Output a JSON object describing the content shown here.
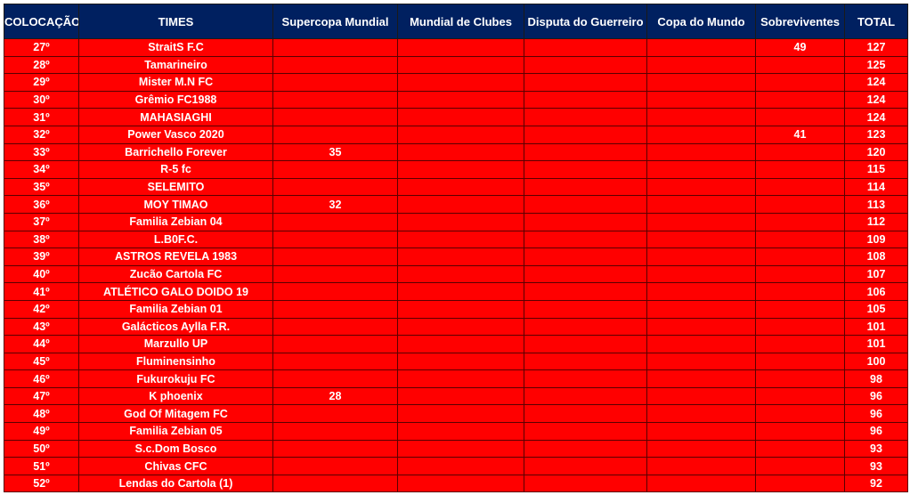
{
  "colors": {
    "header_bg": "#002060",
    "row_bg": "#ff0000",
    "text": "#ffffff"
  },
  "headers": [
    "COLOCAÇÃO",
    "TIMES",
    "Supercopa Mundial",
    "Mundial de Clubes",
    "Disputa do Guerreiro",
    "Copa do Mundo",
    "Sobreviventes",
    "TOTAL"
  ],
  "rows": [
    [
      "27º",
      "StraitS F.C",
      "",
      "",
      "",
      "",
      "49",
      "127"
    ],
    [
      "28º",
      "Tamarineiro",
      "",
      "",
      "",
      "",
      "",
      "125"
    ],
    [
      "29º",
      "Mister M.N FC",
      "",
      "",
      "",
      "",
      "",
      "124"
    ],
    [
      "30º",
      "Grêmio FC1988",
      "",
      "",
      "",
      "",
      "",
      "124"
    ],
    [
      "31º",
      "MAHASIAGHI",
      "",
      "",
      "",
      "",
      "",
      "124"
    ],
    [
      "32º",
      "Power Vasco 2020",
      "",
      "",
      "",
      "",
      "41",
      "123"
    ],
    [
      "33º",
      "Barrichello Forever",
      "35",
      "",
      "",
      "",
      "",
      "120"
    ],
    [
      "34º",
      "R-5 fc",
      "",
      "",
      "",
      "",
      "",
      "115"
    ],
    [
      "35º",
      "SELEMITO",
      "",
      "",
      "",
      "",
      "",
      "114"
    ],
    [
      "36º",
      "MOY TIMAO",
      "32",
      "",
      "",
      "",
      "",
      "113"
    ],
    [
      "37º",
      "Familia Zebian 04",
      "",
      "",
      "",
      "",
      "",
      "112"
    ],
    [
      "38º",
      "L.B0F.C.",
      "",
      "",
      "",
      "",
      "",
      "109"
    ],
    [
      "39º",
      "ASTROS REVELA 1983",
      "",
      "",
      "",
      "",
      "",
      "108"
    ],
    [
      "40º",
      "Zucão Cartola FC",
      "",
      "",
      "",
      "",
      "",
      "107"
    ],
    [
      "41º",
      "ATLÉTICO GALO DOIDO 19",
      "",
      "",
      "",
      "",
      "",
      "106"
    ],
    [
      "42º",
      "Familia Zebian 01",
      "",
      "",
      "",
      "",
      "",
      "105"
    ],
    [
      "43º",
      "Galácticos Aylla F.R.",
      "",
      "",
      "",
      "",
      "",
      "101"
    ],
    [
      "44º",
      "Marzullo UP",
      "",
      "",
      "",
      "",
      "",
      "101"
    ],
    [
      "45º",
      "Fluminensinho",
      "",
      "",
      "",
      "",
      "",
      "100"
    ],
    [
      "46º",
      "Fukurokuju FC",
      "",
      "",
      "",
      "",
      "",
      "98"
    ],
    [
      "47º",
      "K phoenix",
      "28",
      "",
      "",
      "",
      "",
      "96"
    ],
    [
      "48º",
      "God Of Mitagem FC",
      "",
      "",
      "",
      "",
      "",
      "96"
    ],
    [
      "49º",
      "Familia Zebian 05",
      "",
      "",
      "",
      "",
      "",
      "96"
    ],
    [
      "50º",
      "S.c.Dom Bosco",
      "",
      "",
      "",
      "",
      "",
      "93"
    ],
    [
      "51º",
      "Chivas CFC",
      "",
      "",
      "",
      "",
      "",
      "93"
    ],
    [
      "52º",
      "Lendas do Cartola (1)",
      "",
      "",
      "",
      "",
      "",
      "92"
    ]
  ]
}
